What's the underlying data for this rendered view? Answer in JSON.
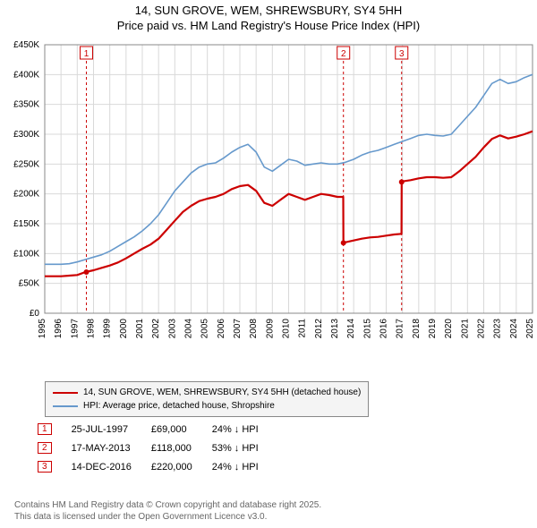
{
  "title_line1": "14, SUN GROVE, WEM, SHREWSBURY, SY4 5HH",
  "title_line2": "Price paid vs. HM Land Registry's House Price Index (HPI)",
  "chart": {
    "type": "line",
    "background_color": "#ffffff",
    "plot_background": "#ffffff",
    "grid_color": "#d9d9d9",
    "x_years": [
      "1995",
      "1996",
      "1997",
      "1998",
      "1999",
      "2000",
      "2001",
      "2002",
      "2003",
      "2004",
      "2005",
      "2006",
      "2007",
      "2008",
      "2009",
      "2010",
      "2011",
      "2012",
      "2013",
      "2014",
      "2015",
      "2016",
      "2017",
      "2018",
      "2019",
      "2020",
      "2021",
      "2022",
      "2023",
      "2024",
      "2025"
    ],
    "y_ticks": [
      0,
      50,
      100,
      150,
      200,
      250,
      300,
      350,
      400,
      450
    ],
    "y_tick_labels": [
      "£0",
      "£50K",
      "£100K",
      "£150K",
      "£200K",
      "£250K",
      "£300K",
      "£350K",
      "£400K",
      "£450K"
    ],
    "ylim": [
      0,
      450
    ],
    "series": [
      {
        "name": "14, SUN GROVE, WEM, SHREWSBURY, SY4 5HH (detached house)",
        "color": "#cc0000",
        "width": 2.2,
        "segments": [
          {
            "year": 1995.0,
            "value": 62
          },
          {
            "year": 1995.5,
            "value": 62
          },
          {
            "year": 1996.0,
            "value": 62
          },
          {
            "year": 1996.5,
            "value": 63
          },
          {
            "year": 1997.0,
            "value": 64
          },
          {
            "year": 1997.5,
            "value": 69
          },
          {
            "year": 1998.0,
            "value": 72
          },
          {
            "year": 1998.5,
            "value": 76
          },
          {
            "year": 1999.0,
            "value": 80
          },
          {
            "year": 1999.5,
            "value": 85
          },
          {
            "year": 2000.0,
            "value": 92
          },
          {
            "year": 2000.5,
            "value": 100
          },
          {
            "year": 2001.0,
            "value": 108
          },
          {
            "year": 2001.5,
            "value": 115
          },
          {
            "year": 2002.0,
            "value": 125
          },
          {
            "year": 2002.5,
            "value": 140
          },
          {
            "year": 2003.0,
            "value": 155
          },
          {
            "year": 2003.5,
            "value": 170
          },
          {
            "year": 2004.0,
            "value": 180
          },
          {
            "year": 2004.5,
            "value": 188
          },
          {
            "year": 2005.0,
            "value": 192
          },
          {
            "year": 2005.5,
            "value": 195
          },
          {
            "year": 2006.0,
            "value": 200
          },
          {
            "year": 2006.5,
            "value": 208
          },
          {
            "year": 2007.0,
            "value": 213
          },
          {
            "year": 2007.5,
            "value": 215
          },
          {
            "year": 2008.0,
            "value": 205
          },
          {
            "year": 2008.5,
            "value": 185
          },
          {
            "year": 2009.0,
            "value": 180
          },
          {
            "year": 2009.5,
            "value": 190
          },
          {
            "year": 2010.0,
            "value": 200
          },
          {
            "year": 2010.5,
            "value": 195
          },
          {
            "year": 2011.0,
            "value": 190
          },
          {
            "year": 2011.5,
            "value": 195
          },
          {
            "year": 2012.0,
            "value": 200
          },
          {
            "year": 2012.5,
            "value": 198
          },
          {
            "year": 2013.0,
            "value": 195
          },
          {
            "year": 2013.36,
            "value": 195
          },
          {
            "year": 2013.37,
            "value": 118
          },
          {
            "year": 2013.5,
            "value": 119
          },
          {
            "year": 2014.0,
            "value": 122
          },
          {
            "year": 2014.5,
            "value": 125
          },
          {
            "year": 2015.0,
            "value": 127
          },
          {
            "year": 2015.5,
            "value": 128
          },
          {
            "year": 2016.0,
            "value": 130
          },
          {
            "year": 2016.5,
            "value": 132
          },
          {
            "year": 2016.94,
            "value": 133
          },
          {
            "year": 2016.95,
            "value": 220
          },
          {
            "year": 2017.0,
            "value": 221
          },
          {
            "year": 2017.5,
            "value": 223
          },
          {
            "year": 2018.0,
            "value": 226
          },
          {
            "year": 2018.5,
            "value": 228
          },
          {
            "year": 2019.0,
            "value": 228
          },
          {
            "year": 2019.5,
            "value": 227
          },
          {
            "year": 2020.0,
            "value": 228
          },
          {
            "year": 2020.5,
            "value": 238
          },
          {
            "year": 2021.0,
            "value": 250
          },
          {
            "year": 2021.5,
            "value": 262
          },
          {
            "year": 2022.0,
            "value": 278
          },
          {
            "year": 2022.5,
            "value": 292
          },
          {
            "year": 2023.0,
            "value": 298
          },
          {
            "year": 2023.5,
            "value": 293
          },
          {
            "year": 2024.0,
            "value": 296
          },
          {
            "year": 2024.5,
            "value": 300
          },
          {
            "year": 2025.0,
            "value": 305
          }
        ]
      },
      {
        "name": "HPI: Average price, detached house, Shropshire",
        "color": "#6699cc",
        "width": 1.6,
        "segments": [
          {
            "year": 1995.0,
            "value": 82
          },
          {
            "year": 1995.5,
            "value": 82
          },
          {
            "year": 1996.0,
            "value": 82
          },
          {
            "year": 1996.5,
            "value": 83
          },
          {
            "year": 1997.0,
            "value": 86
          },
          {
            "year": 1997.5,
            "value": 90
          },
          {
            "year": 1998.0,
            "value": 94
          },
          {
            "year": 1998.5,
            "value": 98
          },
          {
            "year": 1999.0,
            "value": 104
          },
          {
            "year": 1999.5,
            "value": 112
          },
          {
            "year": 2000.0,
            "value": 120
          },
          {
            "year": 2000.5,
            "value": 128
          },
          {
            "year": 2001.0,
            "value": 138
          },
          {
            "year": 2001.5,
            "value": 150
          },
          {
            "year": 2002.0,
            "value": 165
          },
          {
            "year": 2002.5,
            "value": 185
          },
          {
            "year": 2003.0,
            "value": 205
          },
          {
            "year": 2003.5,
            "value": 220
          },
          {
            "year": 2004.0,
            "value": 235
          },
          {
            "year": 2004.5,
            "value": 245
          },
          {
            "year": 2005.0,
            "value": 250
          },
          {
            "year": 2005.5,
            "value": 252
          },
          {
            "year": 2006.0,
            "value": 260
          },
          {
            "year": 2006.5,
            "value": 270
          },
          {
            "year": 2007.0,
            "value": 278
          },
          {
            "year": 2007.5,
            "value": 283
          },
          {
            "year": 2008.0,
            "value": 270
          },
          {
            "year": 2008.5,
            "value": 245
          },
          {
            "year": 2009.0,
            "value": 238
          },
          {
            "year": 2009.5,
            "value": 248
          },
          {
            "year": 2010.0,
            "value": 258
          },
          {
            "year": 2010.5,
            "value": 255
          },
          {
            "year": 2011.0,
            "value": 248
          },
          {
            "year": 2011.5,
            "value": 250
          },
          {
            "year": 2012.0,
            "value": 252
          },
          {
            "year": 2012.5,
            "value": 250
          },
          {
            "year": 2013.0,
            "value": 250
          },
          {
            "year": 2013.5,
            "value": 253
          },
          {
            "year": 2014.0,
            "value": 258
          },
          {
            "year": 2014.5,
            "value": 265
          },
          {
            "year": 2015.0,
            "value": 270
          },
          {
            "year": 2015.5,
            "value": 273
          },
          {
            "year": 2016.0,
            "value": 278
          },
          {
            "year": 2016.5,
            "value": 283
          },
          {
            "year": 2017.0,
            "value": 288
          },
          {
            "year": 2017.5,
            "value": 293
          },
          {
            "year": 2018.0,
            "value": 298
          },
          {
            "year": 2018.5,
            "value": 300
          },
          {
            "year": 2019.0,
            "value": 298
          },
          {
            "year": 2019.5,
            "value": 297
          },
          {
            "year": 2020.0,
            "value": 300
          },
          {
            "year": 2020.5,
            "value": 315
          },
          {
            "year": 2021.0,
            "value": 330
          },
          {
            "year": 2021.5,
            "value": 345
          },
          {
            "year": 2022.0,
            "value": 365
          },
          {
            "year": 2022.5,
            "value": 385
          },
          {
            "year": 2023.0,
            "value": 392
          },
          {
            "year": 2023.5,
            "value": 385
          },
          {
            "year": 2024.0,
            "value": 388
          },
          {
            "year": 2024.5,
            "value": 395
          },
          {
            "year": 2025.0,
            "value": 400
          }
        ]
      }
    ],
    "sale_markers": [
      {
        "num": "1",
        "year": 1997.56
      },
      {
        "num": "2",
        "year": 2013.37
      },
      {
        "num": "3",
        "year": 2016.95
      }
    ]
  },
  "legend": {
    "series1_label": "14, SUN GROVE, WEM, SHREWSBURY, SY4 5HH (detached house)",
    "series1_color": "#cc0000",
    "series2_label": "HPI: Average price, detached house, Shropshire",
    "series2_color": "#6699cc"
  },
  "sales": [
    {
      "num": "1",
      "date": "25-JUL-1997",
      "price": "£69,000",
      "delta": "24% ↓ HPI"
    },
    {
      "num": "2",
      "date": "17-MAY-2013",
      "price": "£118,000",
      "delta": "53% ↓ HPI"
    },
    {
      "num": "3",
      "date": "14-DEC-2016",
      "price": "£220,000",
      "delta": "24% ↓ HPI"
    }
  ],
  "footer_line1": "Contains HM Land Registry data © Crown copyright and database right 2025.",
  "footer_line2": "This data is licensed under the Open Government Licence v3.0."
}
